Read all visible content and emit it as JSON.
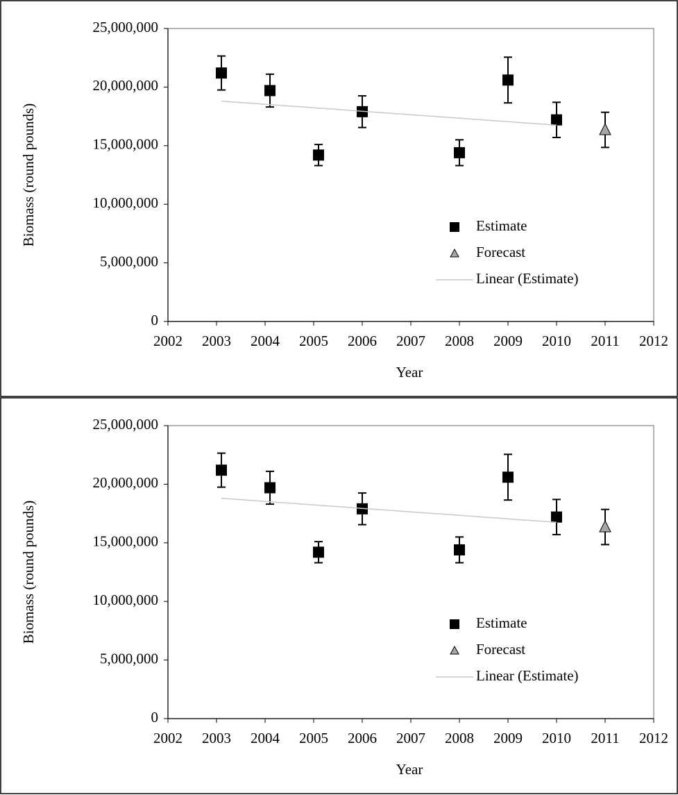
{
  "chart_data": [
    {
      "type": "scatter",
      "xlabel": "Year",
      "ylabel": "Biomass (round pounds)",
      "xlim": [
        2002,
        2012
      ],
      "xticks": [
        2002,
        2003,
        2004,
        2005,
        2006,
        2007,
        2008,
        2009,
        2010,
        2011,
        2012
      ],
      "ylim": [
        0,
        25000000
      ],
      "yticks": [
        0,
        {
          "value": 5000000,
          "label": "5,000,000"
        },
        {
          "value": 10000000,
          "label": "10,000,000"
        },
        {
          "value": 15000000,
          "label": "15,000,000"
        },
        {
          "value": 20000000,
          "label": "20,000,000"
        },
        {
          "value": 25000000,
          "label": "25,000,000"
        }
      ],
      "legend": "lower right",
      "series": [
        {
          "name": "Estimate",
          "color": "#000000",
          "marker": "square",
          "x": [
            2003.1,
            2004.1,
            2005.1,
            2006,
            2008,
            2009,
            2010
          ],
          "values": [
            21200000,
            19700000,
            14200000,
            17900000,
            14400000,
            20600000,
            17200000
          ],
          "errors": [
            1450000,
            1400000,
            900000,
            1350000,
            1100000,
            1950000,
            1500000
          ]
        },
        {
          "name": "Forecast",
          "color": "#a6a6a6",
          "marker": "triangle",
          "x": [
            2011
          ],
          "values": [
            16350000
          ],
          "errors": [
            1500000
          ]
        },
        {
          "name": "Linear (Estimate)",
          "color": "#c8c8c8",
          "marker": "line",
          "x": [
            2003.1,
            2010
          ],
          "values": [
            18800000,
            16750000
          ]
        }
      ]
    },
    {
      "type": "scatter",
      "xlabel": "Year",
      "ylabel": "Biomass (round pounds)",
      "xlim": [
        2002,
        2012
      ],
      "xticks": [
        2002,
        2003,
        2004,
        2005,
        2006,
        2007,
        2008,
        2009,
        2010,
        2011,
        2012
      ],
      "ylim": [
        0,
        25000000
      ],
      "yticks": [
        0,
        {
          "value": 5000000,
          "label": "5,000,000"
        },
        {
          "value": 10000000,
          "label": "10,000,000"
        },
        {
          "value": 15000000,
          "label": "15,000,000"
        },
        {
          "value": 20000000,
          "label": "20,000,000"
        },
        {
          "value": 25000000,
          "label": "25,000,000"
        }
      ],
      "legend": "lower right",
      "series": [
        {
          "name": "Estimate",
          "color": "#000000",
          "marker": "square",
          "x": [
            2003.1,
            2004.1,
            2005.1,
            2006,
            2008,
            2009,
            2010
          ],
          "values": [
            21200000,
            19700000,
            14200000,
            17900000,
            14400000,
            20600000,
            17200000
          ],
          "errors": [
            1450000,
            1400000,
            900000,
            1350000,
            1100000,
            1950000,
            1500000
          ]
        },
        {
          "name": "Forecast",
          "color": "#a6a6a6",
          "marker": "triangle",
          "x": [
            2011
          ],
          "values": [
            16350000
          ],
          "errors": [
            1500000
          ]
        },
        {
          "name": "Linear (Estimate)",
          "color": "#c8c8c8",
          "marker": "line",
          "x": [
            2003.1,
            2010
          ],
          "values": [
            18800000,
            16750000
          ]
        }
      ]
    }
  ]
}
